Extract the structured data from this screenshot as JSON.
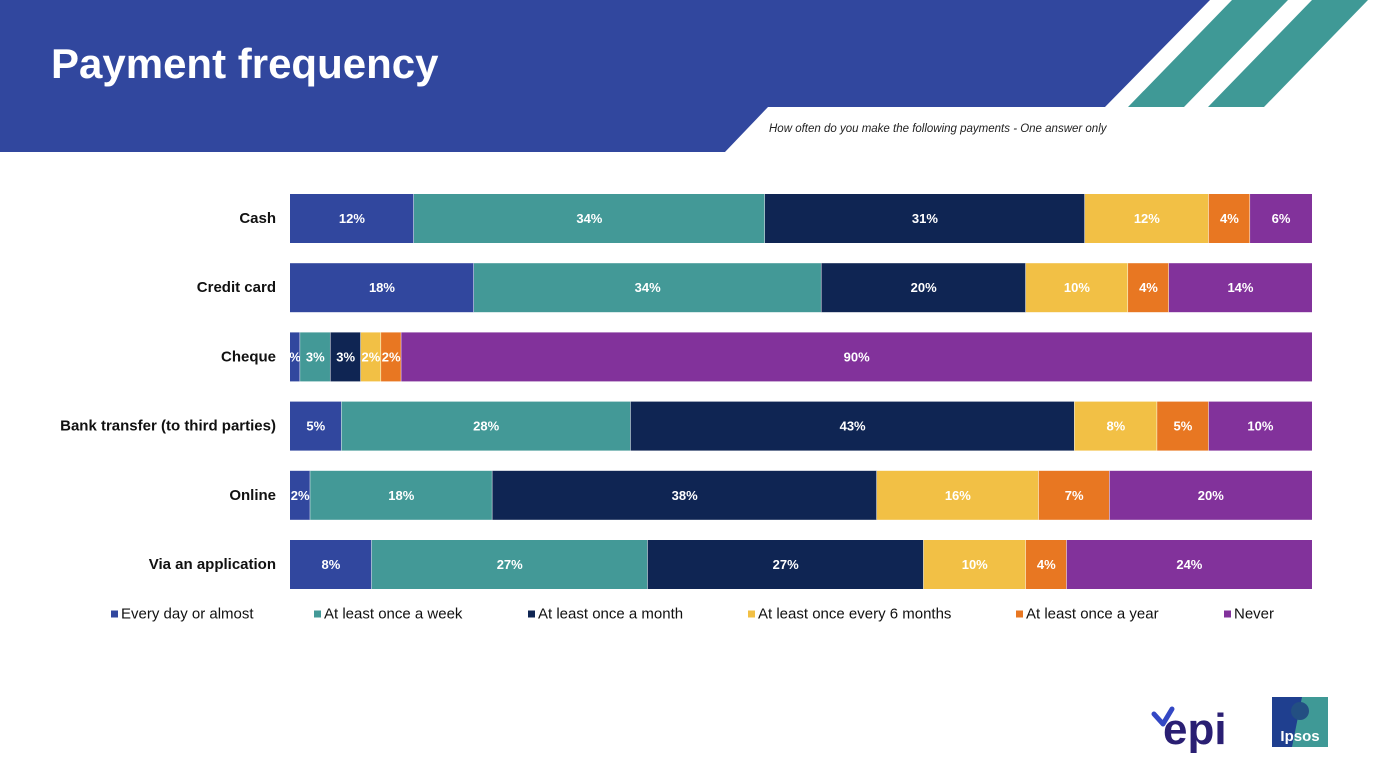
{
  "header": {
    "title": "Payment frequency",
    "question": "How often do you make the following payments - One answer only"
  },
  "colors": {
    "banner": "#31479e",
    "stripes": "#3f9996",
    "series": [
      "#31479e",
      "#439997",
      "#0f2553",
      "#f2c045",
      "#e87722",
      "#82329b"
    ]
  },
  "chart_data": {
    "type": "bar",
    "orientation": "horizontal",
    "stacked": true,
    "xlim": [
      0,
      100
    ],
    "unit": "%",
    "categories": [
      "Cash",
      "Credit card",
      "Cheque",
      "Bank transfer (to third parties)",
      "Online",
      "Via an application"
    ],
    "series": [
      {
        "name": "Every day or almost",
        "values": [
          12,
          18,
          1,
          5,
          2,
          8
        ],
        "labels": [
          "12%",
          "18%",
          "%",
          "5%",
          "2%",
          "8%"
        ]
      },
      {
        "name": "At least once a week",
        "values": [
          34,
          34,
          3,
          28,
          18,
          27
        ],
        "labels": [
          "34%",
          "34%",
          "3%",
          "28%",
          "18%",
          "27%"
        ]
      },
      {
        "name": "At least once a month",
        "values": [
          31,
          20,
          3,
          43,
          38,
          27
        ],
        "labels": [
          "31%",
          "20%",
          "3%",
          "43%",
          "38%",
          "27%"
        ]
      },
      {
        "name": "At least once every 6 months",
        "values": [
          12,
          10,
          2,
          8,
          16,
          10
        ],
        "labels": [
          "12%",
          "10%",
          "2%",
          "8%",
          "16%",
          "10%"
        ]
      },
      {
        "name": "At least once a year",
        "values": [
          4,
          4,
          2,
          5,
          7,
          4
        ],
        "labels": [
          "4%",
          "4%",
          "2%",
          "5%",
          "7%",
          "4%"
        ]
      },
      {
        "name": "Never",
        "values": [
          6,
          14,
          90,
          10,
          20,
          24
        ],
        "labels": [
          "6%",
          "14%",
          "90%",
          "10%",
          "20%",
          "24%"
        ]
      }
    ],
    "legend": "bottom"
  },
  "logos": {
    "epi": "epi",
    "ipsos": "Ipsos"
  }
}
